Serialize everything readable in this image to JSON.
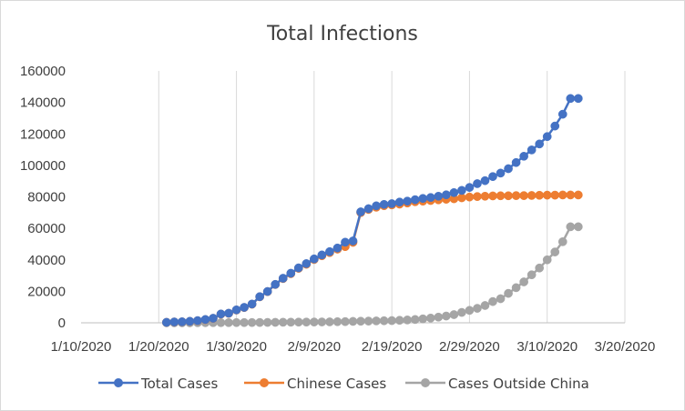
{
  "chart_data": {
    "type": "line",
    "title": "Total Infections",
    "xlabel": "",
    "ylabel": "",
    "x_axis": {
      "type": "date",
      "min": "2020-01-10",
      "max": "2020-03-20",
      "tick_labels": [
        "1/10/2020",
        "1/20/2020",
        "1/30/2020",
        "2/9/2020",
        "2/19/2020",
        "2/29/2020",
        "3/10/2020",
        "3/20/2020"
      ]
    },
    "y_axis": {
      "min": 0,
      "max": 160000,
      "tick_labels": [
        "0",
        "20000",
        "40000",
        "60000",
        "80000",
        "100000",
        "120000",
        "140000",
        "160000"
      ]
    },
    "grid": "vertical",
    "legend_position": "bottom",
    "x": [
      "2020-01-21",
      "2020-01-22",
      "2020-01-23",
      "2020-01-24",
      "2020-01-25",
      "2020-01-26",
      "2020-01-27",
      "2020-01-28",
      "2020-01-29",
      "2020-01-30",
      "2020-01-31",
      "2020-02-01",
      "2020-02-02",
      "2020-02-03",
      "2020-02-04",
      "2020-02-05",
      "2020-02-06",
      "2020-02-07",
      "2020-02-08",
      "2020-02-09",
      "2020-02-10",
      "2020-02-11",
      "2020-02-12",
      "2020-02-13",
      "2020-02-14",
      "2020-02-15",
      "2020-02-16",
      "2020-02-17",
      "2020-02-18",
      "2020-02-19",
      "2020-02-20",
      "2020-02-21",
      "2020-02-22",
      "2020-02-23",
      "2020-02-24",
      "2020-02-25",
      "2020-02-26",
      "2020-02-27",
      "2020-02-28",
      "2020-02-29",
      "2020-03-01",
      "2020-03-02",
      "2020-03-03",
      "2020-03-04",
      "2020-03-05",
      "2020-03-06",
      "2020-03-07",
      "2020-03-08",
      "2020-03-09",
      "2020-03-10",
      "2020-03-11",
      "2020-03-12",
      "2020-03-13",
      "2020-03-14"
    ],
    "series": [
      {
        "name": "Total Cases",
        "color": "#4472c4",
        "values": [
          300,
          550,
          650,
          950,
          1400,
          2100,
          2900,
          5600,
          6100,
          8200,
          9800,
          11900,
          16600,
          19900,
          24400,
          28300,
          31500,
          34900,
          37600,
          40600,
          43100,
          45200,
          47500,
          51200,
          52000,
          70500,
          72500,
          74300,
          75200,
          75700,
          76700,
          77300,
          78200,
          79000,
          79600,
          80400,
          81300,
          82700,
          84100,
          86000,
          88400,
          90300,
          92900,
          95100,
          97900,
          101800,
          105800,
          109800,
          113600,
          118300,
          125000,
          132500,
          142500,
          142500
        ]
      },
      {
        "name": "Chinese Cases",
        "color": "#ed7d31",
        "values": [
          300,
          500,
          600,
          900,
          1300,
          2000,
          2800,
          5500,
          6000,
          8100,
          9700,
          11800,
          16500,
          19800,
          24300,
          28100,
          31200,
          34600,
          37200,
          40200,
          42600,
          44600,
          46800,
          48400,
          51100,
          70000,
          72000,
          73400,
          74400,
          74900,
          75400,
          76100,
          76900,
          77300,
          77700,
          78100,
          78500,
          78800,
          79400,
          79900,
          80200,
          80400,
          80600,
          80700,
          80700,
          80800,
          80800,
          80900,
          81000,
          81100,
          81100,
          81200,
          81200,
          81200
        ]
      },
      {
        "name": "Cases Outside China",
        "color": "#a5a5a5",
        "values": [
          0,
          0,
          0,
          0,
          50,
          80,
          100,
          100,
          120,
          140,
          150,
          170,
          200,
          250,
          300,
          350,
          400,
          450,
          470,
          500,
          550,
          600,
          700,
          750,
          900,
          1000,
          1100,
          1200,
          1300,
          1400,
          1600,
          1800,
          2100,
          2500,
          3000,
          3600,
          4300,
          5200,
          6600,
          7900,
          9200,
          11000,
          13500,
          15300,
          18700,
          22300,
          26000,
          30500,
          34800,
          40000,
          45000,
          51500,
          61000,
          61000
        ]
      }
    ]
  }
}
